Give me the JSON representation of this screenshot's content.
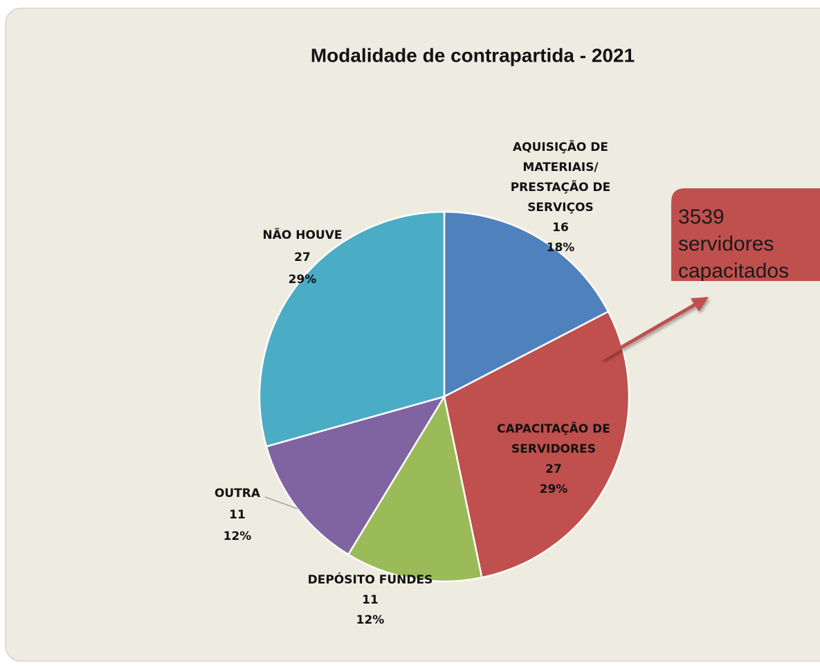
{
  "chart_data": {
    "type": "pie",
    "title": "Modalidade de contrapartida -  2021",
    "categories": [
      [
        "AQUISIÇÃO DE",
        "MATERIAIS/",
        "PRESTAÇÃO DE",
        "SERVIÇOS"
      ],
      [
        "CAPACITAÇÃO DE",
        "SERVIDORES"
      ],
      [
        "DEPÓSITO FUNDES"
      ],
      [
        "OUTRA"
      ],
      [
        "NÃO HOUVE"
      ]
    ],
    "values": [
      16,
      27,
      11,
      11,
      27
    ],
    "percent_labels": [
      "18%",
      "29%",
      "12%",
      "12%",
      "29%"
    ],
    "colors": [
      "#4f81bd",
      "#c0504d",
      "#9bbb59",
      "#8064a2",
      "#4bacc6"
    ],
    "annotation": [
      "3539",
      "servidores",
      "capacitados"
    ]
  }
}
